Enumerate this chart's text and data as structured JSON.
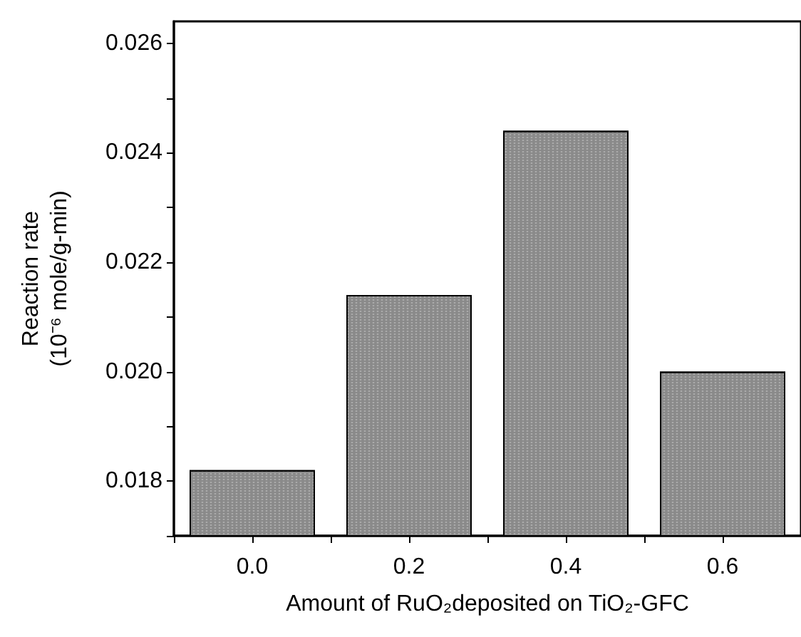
{
  "chart_data": {
    "type": "bar",
    "xlabel": "Amount of RuO₂deposited on TiO₂-GFC",
    "ylabel": "Reaction rate\n(10⁻⁶ mole/g-min)",
    "x": [
      0.0,
      0.2,
      0.4,
      0.6
    ],
    "values": [
      0.0182,
      0.0214,
      0.0244,
      0.02
    ],
    "color": "#8a8a8a",
    "xlim": [
      -0.1,
      0.7
    ],
    "xticks": [
      {
        "value": -0.1,
        "label": null
      },
      {
        "value": 0.0,
        "label": "0.0"
      },
      {
        "value": 0.1,
        "label": null
      },
      {
        "value": 0.2,
        "label": "0.2"
      },
      {
        "value": 0.3,
        "label": null
      },
      {
        "value": 0.4,
        "label": "0.4"
      },
      {
        "value": 0.5,
        "label": null
      },
      {
        "value": 0.6,
        "label": "0.6"
      }
    ],
    "ylim": [
      0.017,
      0.0264
    ],
    "yticks": [
      {
        "value": 0.017,
        "label": null
      },
      {
        "value": 0.018,
        "label": "0.018"
      },
      {
        "value": 0.019,
        "label": null
      },
      {
        "value": 0.02,
        "label": "0.020"
      },
      {
        "value": 0.021,
        "label": null
      },
      {
        "value": 0.022,
        "label": "0.022"
      },
      {
        "value": 0.023,
        "label": null
      },
      {
        "value": 0.024,
        "label": "0.024"
      },
      {
        "value": 0.025,
        "label": null
      },
      {
        "value": 0.026,
        "label": "0.026"
      }
    ],
    "grid": false
  }
}
